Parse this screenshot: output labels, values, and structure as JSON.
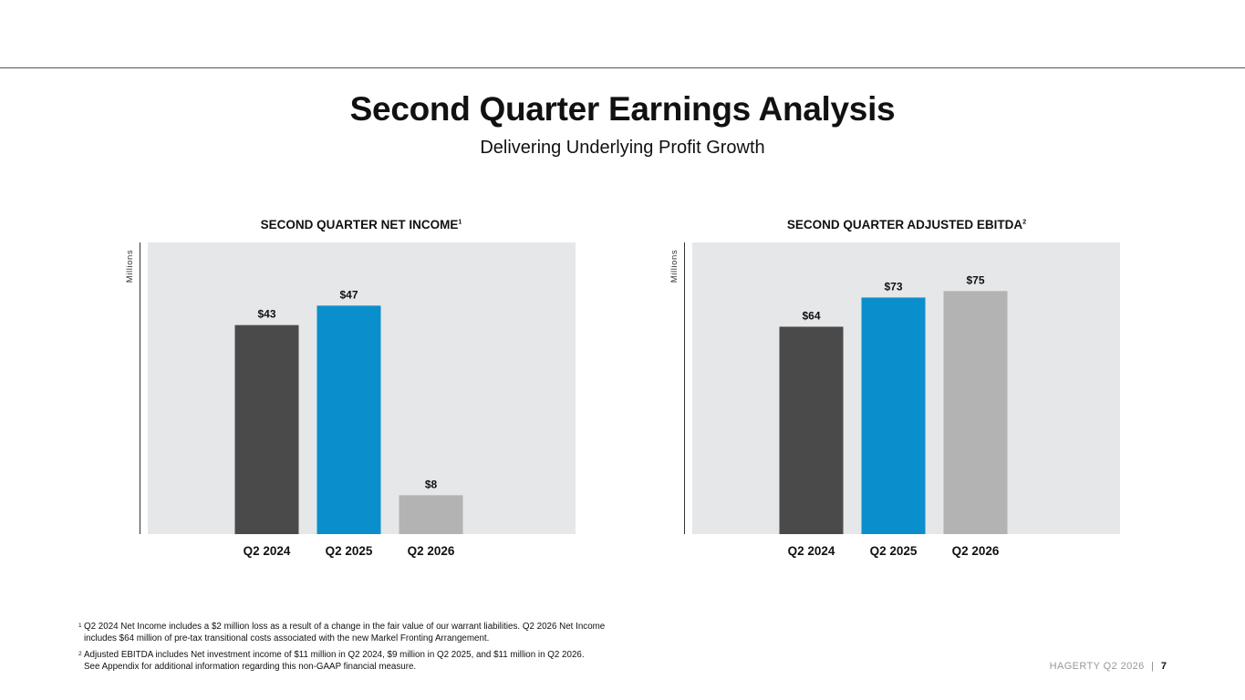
{
  "header": {
    "title": "Second Quarter Earnings Analysis",
    "subtitle": "Delivering Underlying Profit Growth"
  },
  "chart_data": [
    {
      "type": "bar",
      "title": "SECOND QUARTER NET INCOME",
      "title_note": "1",
      "ylabel": "Millions",
      "categories": [
        "Q2 2024",
        "Q2 2025",
        "Q2 2026"
      ],
      "values": [
        43,
        47,
        8
      ],
      "data_labels": [
        "$43",
        "$47",
        "$8"
      ],
      "colors": [
        "#4a4a4a",
        "#0a8fcc",
        "#b3b3b3"
      ],
      "background": "#e6e7e8",
      "ylim": [
        0,
        60
      ]
    },
    {
      "type": "bar",
      "title": "SECOND QUARTER ADJUSTED EBITDA",
      "title_note": "2",
      "ylabel": "Millions",
      "categories": [
        "Q2 2024",
        "Q2 2025",
        "Q2 2026"
      ],
      "values": [
        64,
        73,
        75
      ],
      "data_labels": [
        "$64",
        "$73",
        "$75"
      ],
      "colors": [
        "#4a4a4a",
        "#0a8fcc",
        "#b3b3b3"
      ],
      "background": "#e6e7e8",
      "ylim": [
        0,
        90
      ]
    }
  ],
  "footnotes": [
    {
      "mark": "1",
      "line1": "Q2 2024 Net Income includes a $2 million loss as a result of a change in the fair value of our warrant liabilities. Q2 2026 Net Income",
      "line2": "includes $64 million of pre-tax transitional costs associated with the new Markel Fronting Arrangement."
    },
    {
      "mark": "2",
      "line1": "Adjusted EBITDA includes Net investment income of $11 million in Q2 2024, $9 million in Q2 2025, and $11 million in Q2 2026.",
      "line2": "See Appendix for additional information regarding this non-GAAP financial measure."
    }
  ],
  "footer": {
    "brand": "HAGERTY",
    "period": "Q2 2026",
    "separator": "|",
    "page": "7"
  }
}
